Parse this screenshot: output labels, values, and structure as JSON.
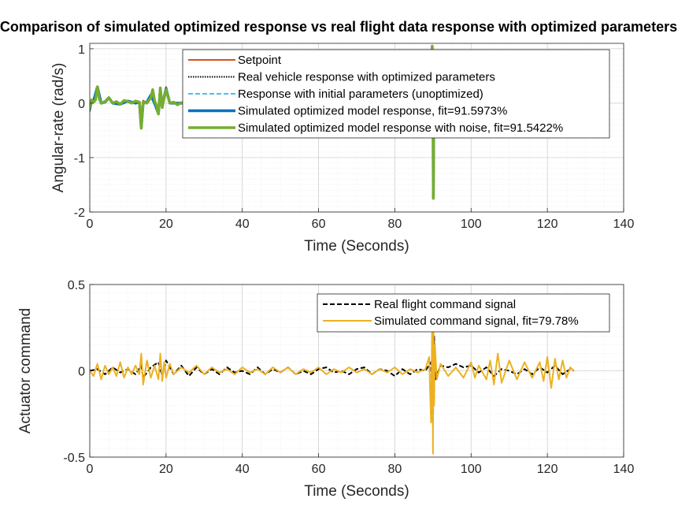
{
  "figure_title": "Comparison of simulated optimized response vs real flight data response with optimized parameters",
  "chart_data": [
    {
      "type": "line",
      "xlabel": "Time (Seconds)",
      "ylabel": "Angular-rate (rad/s)",
      "xlim": [
        0,
        140
      ],
      "ylim": [
        -2,
        1.1
      ],
      "xticks": [
        0,
        20,
        40,
        60,
        80,
        100,
        120,
        140
      ],
      "xtick_labels": [
        "0",
        "20",
        "40",
        "60",
        "80",
        "100",
        "120",
        "140"
      ],
      "yticks": [
        -2,
        -1,
        0,
        1
      ],
      "ytick_labels": [
        "-2",
        "-1",
        "0",
        "1"
      ],
      "grid": "on (major and minor dotted)",
      "legend_position": "top-right",
      "series": [
        {
          "name": "Setpoint",
          "color": "#D95319",
          "style": "solid",
          "x": [
            0,
            1,
            2,
            3,
            4,
            5,
            6,
            8,
            10,
            12,
            13,
            13.5,
            14,
            15,
            16,
            17,
            18,
            18.5,
            19,
            20,
            21,
            22,
            24,
            26,
            28,
            30,
            60,
            89,
            89.6,
            89.8,
            90,
            90.1,
            90.2,
            90.4,
            91,
            127
          ],
          "y": [
            0,
            0.05,
            0.25,
            0.02,
            0.03,
            0.08,
            0.02,
            0.0,
            0.03,
            0.02,
            0.0,
            -0.42,
            0.05,
            0.0,
            0.1,
            0.05,
            -0.1,
            0.15,
            0.0,
            0.3,
            0.0,
            0.0,
            0.0,
            0.0,
            0.0,
            0.0,
            0.0,
            0.0,
            0.0,
            1.0,
            0.4,
            -1.7,
            -0.5,
            0.0,
            0.0,
            0.0
          ]
        },
        {
          "name": "Real vehicle response with optimized parameters",
          "color": "#000000",
          "style": "dotted",
          "x": [
            0,
            0.5,
            1,
            2,
            3,
            4,
            5,
            6,
            8,
            10,
            12,
            13,
            13.5,
            14,
            15,
            16,
            17,
            18,
            18.5,
            19,
            20,
            21,
            22,
            24,
            26,
            28,
            30,
            60,
            89,
            89.6,
            89.8,
            90,
            90.1,
            90.2,
            90.4,
            91,
            127
          ],
          "y": [
            -0.15,
            0.05,
            0.04,
            0.3,
            0.0,
            0.02,
            0.1,
            0.0,
            -0.02,
            0.04,
            0.0,
            0.02,
            -0.45,
            0.0,
            0.02,
            0.15,
            0.0,
            -0.2,
            0.25,
            -0.05,
            0.25,
            0.0,
            0.0,
            0.0,
            0.0,
            0.0,
            0.0,
            0.0,
            0.0,
            0.0,
            1.05,
            0.3,
            -1.75,
            -0.45,
            0.0,
            0.0,
            0.0
          ]
        },
        {
          "name": "Response with initial parameters (unoptimized)",
          "color": "#4DBEEE",
          "style": "dashed",
          "x": [
            0,
            0.5,
            1,
            2,
            3,
            4,
            5,
            6,
            8,
            10,
            12,
            13,
            13.5,
            14,
            15,
            16,
            17,
            18,
            18.5,
            19,
            20,
            21,
            22,
            24,
            26,
            28,
            30,
            60,
            89,
            89.6,
            89.8,
            90,
            90.1,
            90.2,
            90.4,
            91,
            127
          ],
          "y": [
            -0.1,
            0.05,
            0.04,
            0.28,
            0.0,
            0.02,
            0.1,
            0.0,
            -0.02,
            0.04,
            0.0,
            0.02,
            -0.43,
            0.0,
            0.02,
            0.14,
            0.0,
            -0.18,
            0.24,
            -0.04,
            0.26,
            0.0,
            0.0,
            0.0,
            0.0,
            0.0,
            0.0,
            0.0,
            0.0,
            0.0,
            1.02,
            0.35,
            -1.72,
            -0.48,
            0.0,
            0.0,
            0.0
          ]
        },
        {
          "name": "Simulated optimized model response, fit=91.5973%",
          "color": "#0072BD",
          "style": "solid",
          "x": [
            0,
            0.5,
            1,
            2,
            3,
            4,
            5,
            6,
            8,
            10,
            12,
            13,
            13.5,
            14,
            15,
            16,
            17,
            18,
            18.5,
            19,
            20,
            21,
            22,
            24,
            26,
            28,
            30,
            60,
            89,
            89.6,
            89.8,
            90,
            90.1,
            90.2,
            90.4,
            91,
            127
          ],
          "y": [
            -0.12,
            0.05,
            0.04,
            0.3,
            0.0,
            0.02,
            0.1,
            0.0,
            -0.02,
            0.04,
            0.0,
            0.02,
            -0.44,
            0.0,
            0.02,
            0.15,
            0.0,
            -0.19,
            0.25,
            -0.05,
            0.27,
            0.0,
            0.0,
            0.0,
            0.0,
            0.0,
            0.0,
            0.0,
            0.0,
            0.0,
            1.04,
            0.32,
            -1.74,
            -0.46,
            0.0,
            0.0,
            0.0
          ]
        },
        {
          "name": "Simulated optimized model response with noise, fit=91.5422%",
          "color": "#77AC30",
          "style": "solid",
          "x": [
            0,
            0.5,
            1,
            1.5,
            2,
            2.5,
            3,
            4,
            5,
            6,
            7,
            8,
            9,
            10,
            11,
            12,
            13,
            13.5,
            14,
            15,
            16,
            16.5,
            17,
            17.5,
            18,
            18.5,
            19,
            19.5,
            20,
            21,
            22,
            23,
            24,
            25,
            26,
            28,
            30,
            60,
            89,
            89.6,
            89.8,
            90,
            90.1,
            90.2,
            90.4,
            91,
            127
          ],
          "y": [
            -0.1,
            0.06,
            0.02,
            0.06,
            0.3,
            0.08,
            0.0,
            0.03,
            0.1,
            0.0,
            0.03,
            -0.02,
            0.05,
            0.03,
            0.0,
            0.04,
            0.02,
            -0.46,
            0.02,
            0.0,
            0.1,
            0.25,
            0.05,
            -0.05,
            -0.2,
            0.28,
            -0.08,
            0.1,
            0.25,
            0.0,
            0.02,
            -0.03,
            0.01,
            0.0,
            0.0,
            0.0,
            0.0,
            0.0,
            0.0,
            0.0,
            1.05,
            0.3,
            -1.75,
            -0.45,
            0.0,
            0.0,
            0.0
          ]
        }
      ]
    },
    {
      "type": "line",
      "xlabel": "Time (Seconds)",
      "ylabel": "Actuator command",
      "xlim": [
        0,
        140
      ],
      "ylim": [
        -0.5,
        0.5
      ],
      "xticks": [
        0,
        20,
        40,
        60,
        80,
        100,
        120,
        140
      ],
      "xtick_labels": [
        "0",
        "20",
        "40",
        "60",
        "80",
        "100",
        "120",
        "140"
      ],
      "yticks": [
        -0.5,
        0,
        0.5
      ],
      "ytick_labels": [
        "-0.5",
        "0",
        "0.5"
      ],
      "grid": "on (major and minor dotted)",
      "legend_position": "top-right",
      "series": [
        {
          "name": "Real flight command signal",
          "color": "#000000",
          "style": "dashed",
          "x": [
            0,
            2,
            4,
            6,
            8,
            10,
            12,
            13.5,
            14,
            16,
            18,
            19,
            20,
            22,
            24,
            26,
            28,
            30,
            32,
            34,
            36,
            38,
            40,
            42,
            44,
            46,
            48,
            50,
            52,
            54,
            56,
            58,
            60,
            62,
            64,
            66,
            68,
            70,
            72,
            74,
            76,
            78,
            80,
            82,
            84,
            86,
            88,
            89.5,
            90,
            90.3,
            90.6,
            92,
            94,
            96,
            98,
            100,
            102,
            104,
            106,
            108,
            110,
            112,
            114,
            116,
            118,
            120,
            122,
            124,
            126,
            127
          ],
          "y": [
            0.0,
            0.01,
            -0.02,
            0.02,
            -0.01,
            0.01,
            -0.02,
            0.03,
            -0.04,
            0.02,
            0.05,
            -0.03,
            0.06,
            -0.02,
            0.03,
            -0.03,
            0.02,
            -0.02,
            0.01,
            -0.02,
            0.02,
            -0.01,
            0.0,
            -0.02,
            0.02,
            -0.02,
            0.01,
            -0.01,
            0.02,
            -0.02,
            0.0,
            -0.02,
            0.01,
            0.02,
            -0.01,
            0.0,
            -0.02,
            0.01,
            0.02,
            -0.02,
            0.01,
            0.0,
            -0.03,
            0.01,
            -0.02,
            0.01,
            0.0,
            0.05,
            -0.3,
            0.2,
            -0.05,
            0.03,
            0.02,
            0.04,
            0.02,
            0.03,
            -0.01,
            0.02,
            -0.03,
            0.01,
            0.0,
            -0.02,
            0.01,
            -0.02,
            0.02,
            -0.01,
            0.03,
            -0.02,
            0.01,
            0.0
          ]
        },
        {
          "name": "Simulated command signal, fit=79.78%",
          "color": "#EDB120",
          "style": "solid",
          "x": [
            0,
            1,
            2,
            3,
            4,
            5,
            6,
            7,
            8,
            9,
            10,
            11,
            12,
            13,
            13.5,
            14,
            15,
            16,
            17,
            18,
            18.5,
            19,
            19.5,
            20,
            21,
            22,
            24,
            26,
            28,
            30,
            32,
            34,
            36,
            38,
            40,
            42,
            44,
            46,
            48,
            50,
            52,
            54,
            56,
            58,
            60,
            62,
            64,
            66,
            68,
            70,
            72,
            74,
            76,
            78,
            80,
            82,
            84,
            86,
            88,
            89,
            89.5,
            89.8,
            90,
            90.1,
            90.3,
            90.5,
            91,
            92,
            94,
            96,
            98,
            100,
            101,
            102,
            104,
            105,
            106,
            107,
            108,
            110,
            112,
            114,
            116,
            118,
            119,
            120,
            121,
            122,
            123,
            124,
            125,
            126,
            127
          ],
          "y": [
            0.0,
            -0.03,
            0.04,
            -0.05,
            0.03,
            -0.02,
            0.02,
            -0.03,
            0.05,
            -0.04,
            0.02,
            -0.02,
            0.03,
            -0.02,
            0.1,
            -0.08,
            0.06,
            -0.04,
            0.03,
            -0.05,
            0.1,
            -0.06,
            0.05,
            -0.04,
            0.04,
            -0.02,
            0.02,
            -0.01,
            0.03,
            -0.02,
            0.02,
            -0.01,
            0.01,
            -0.02,
            0.02,
            -0.01,
            0.01,
            -0.02,
            0.02,
            -0.01,
            0.02,
            -0.02,
            0.01,
            -0.01,
            0.02,
            -0.02,
            0.01,
            -0.01,
            0.02,
            -0.01,
            0.01,
            -0.02,
            0.01,
            -0.01,
            0.02,
            -0.02,
            0.01,
            -0.01,
            0.01,
            0.08,
            -0.3,
            0.3,
            -0.48,
            0.4,
            -0.2,
            0.15,
            -0.05,
            0.04,
            -0.03,
            0.02,
            -0.04,
            0.05,
            -0.04,
            0.03,
            -0.05,
            0.06,
            -0.08,
            0.1,
            -0.07,
            0.06,
            -0.05,
            0.05,
            -0.04,
            0.05,
            -0.06,
            0.08,
            -0.1,
            0.07,
            -0.05,
            0.06,
            -0.04,
            0.02,
            0.0
          ]
        }
      ]
    }
  ]
}
